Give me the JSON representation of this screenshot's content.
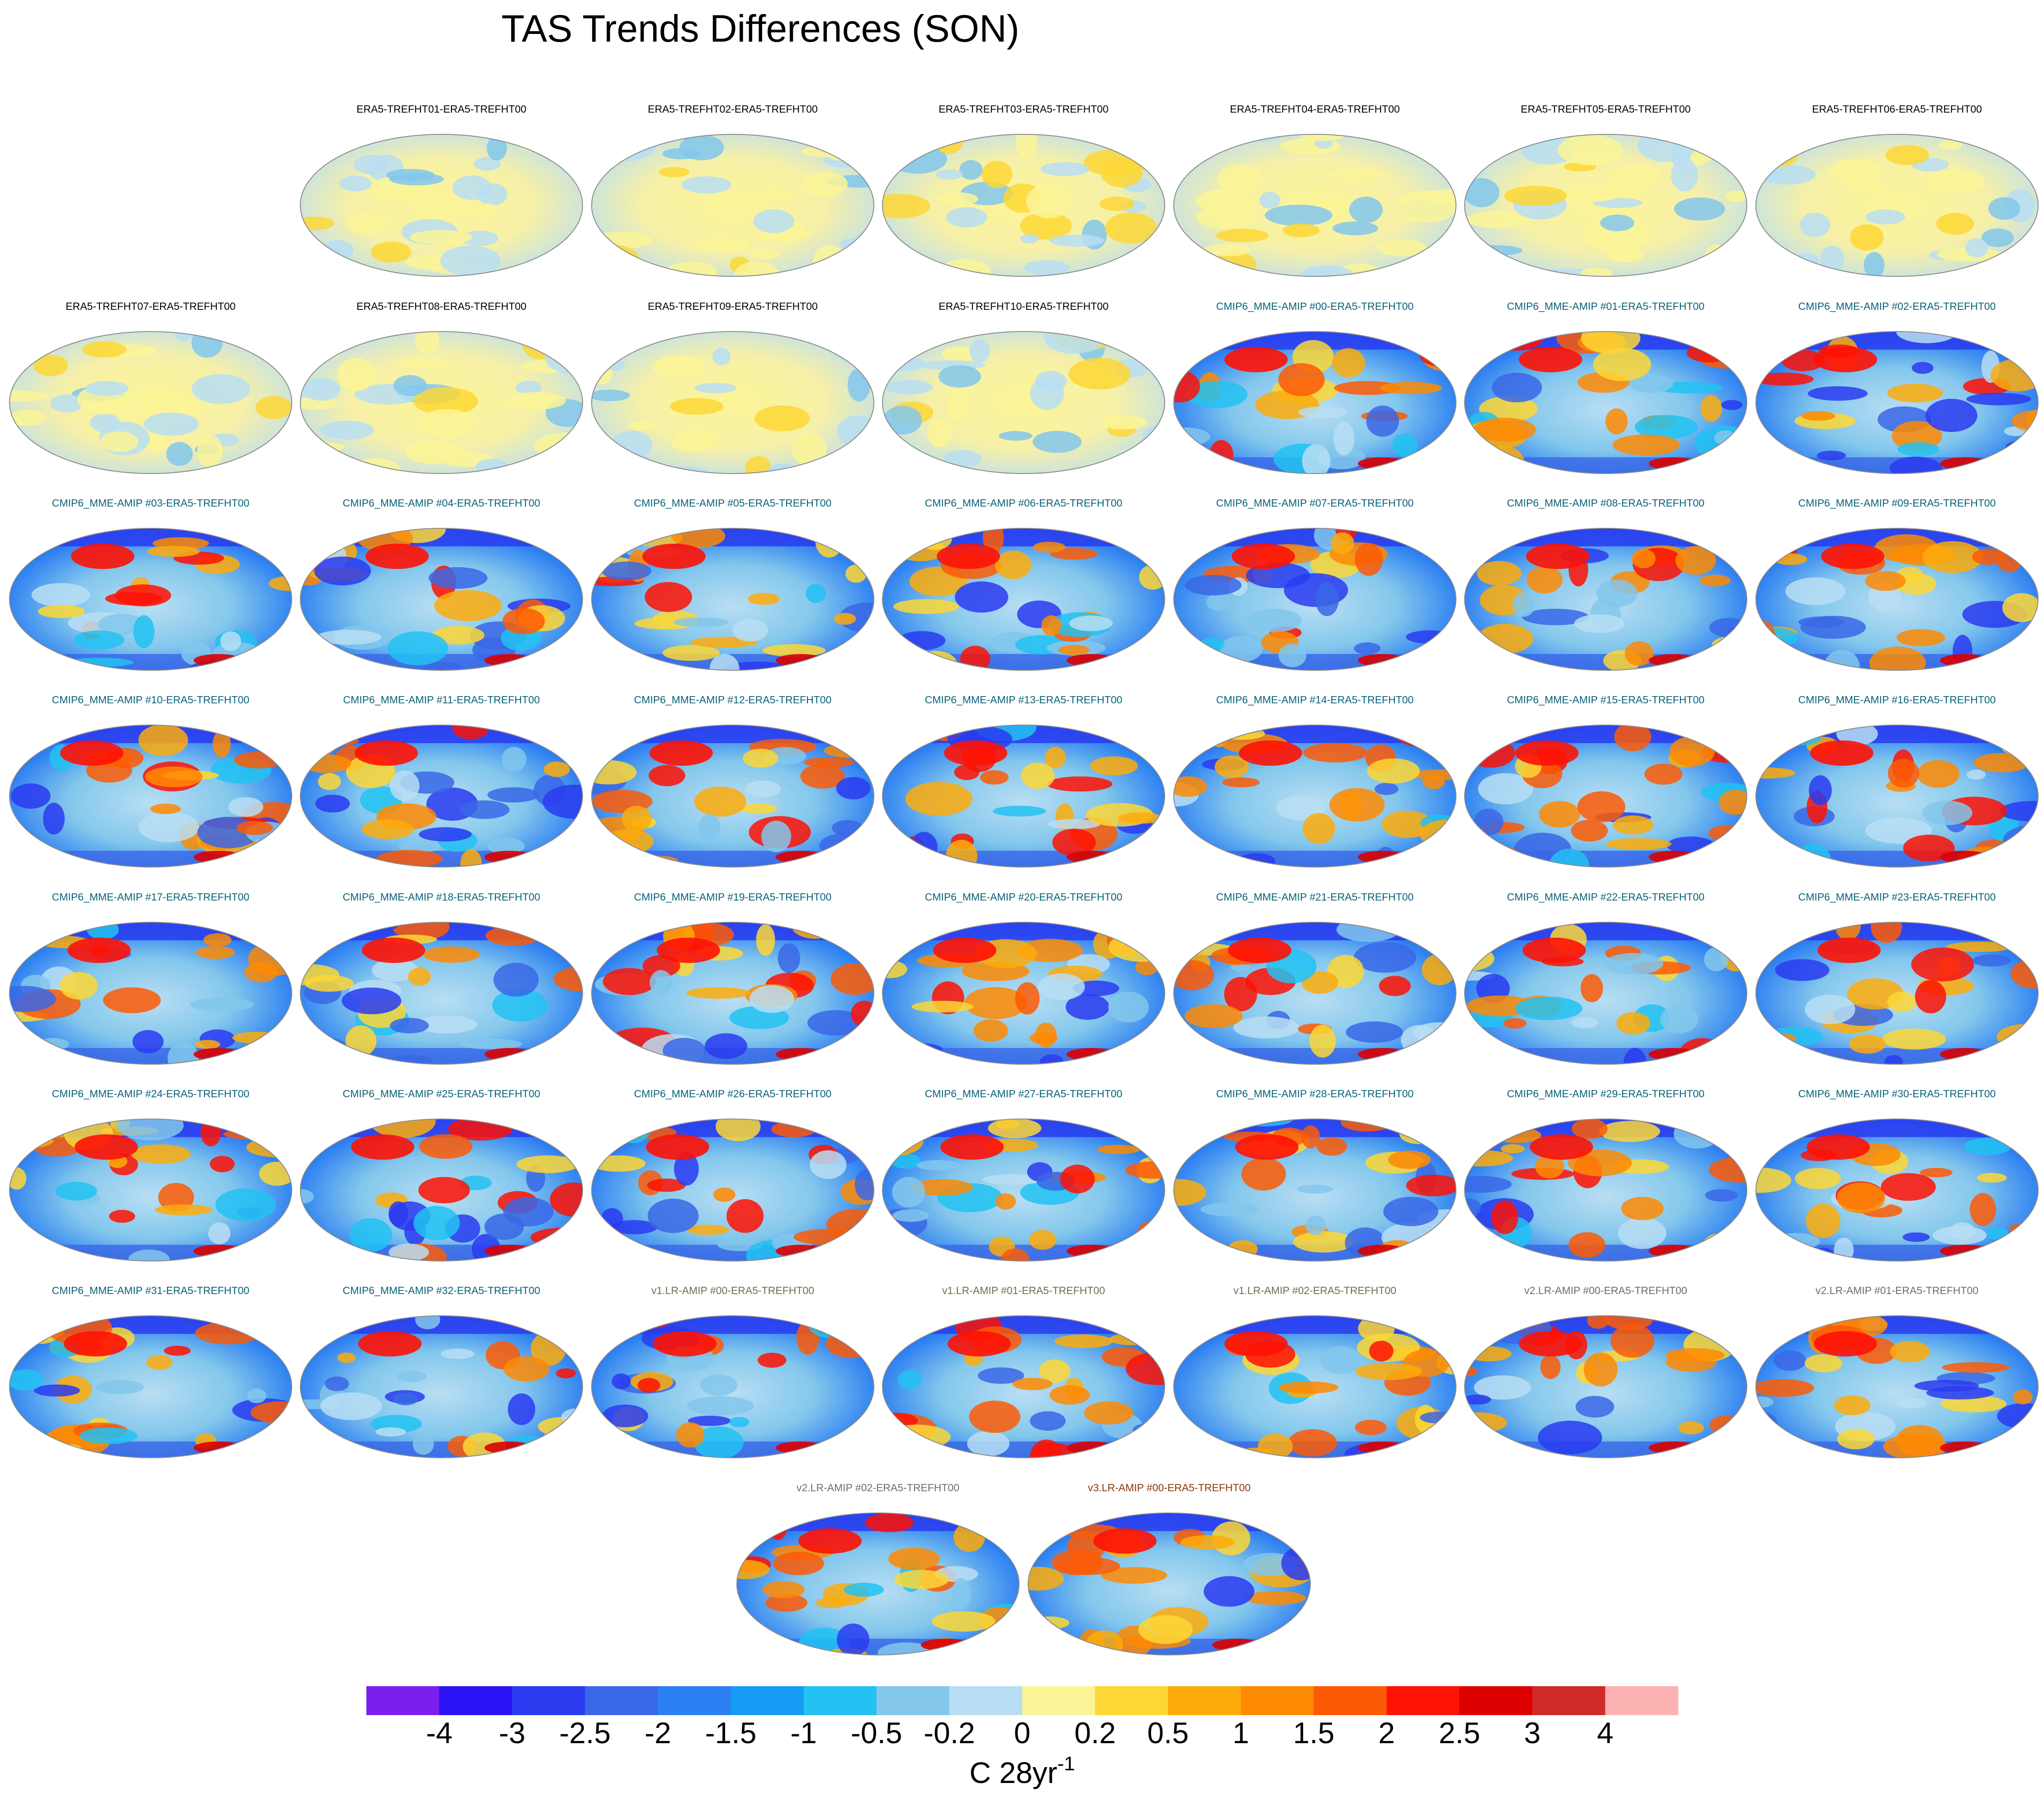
{
  "title": "TAS Trends Differences (SON)",
  "chart_data": {
    "type": "heatmap",
    "title": "TAS Trends Differences (SON)",
    "description_kind": "panel grid of global map trend differences",
    "panels": [
      {
        "label": "ERA5-TREFHT01-ERA5-TREFHT00",
        "group": "era5"
      },
      {
        "label": "ERA5-TREFHT02-ERA5-TREFHT00",
        "group": "era5"
      },
      {
        "label": "ERA5-TREFHT03-ERA5-TREFHT00",
        "group": "era5"
      },
      {
        "label": "ERA5-TREFHT04-ERA5-TREFHT00",
        "group": "era5"
      },
      {
        "label": "ERA5-TREFHT05-ERA5-TREFHT00",
        "group": "era5"
      },
      {
        "label": "ERA5-TREFHT06-ERA5-TREFHT00",
        "group": "era5"
      },
      {
        "label": "ERA5-TREFHT07-ERA5-TREFHT00",
        "group": "era5"
      },
      {
        "label": "ERA5-TREFHT08-ERA5-TREFHT00",
        "group": "era5"
      },
      {
        "label": "ERA5-TREFHT09-ERA5-TREFHT00",
        "group": "era5"
      },
      {
        "label": "ERA5-TREFHT10-ERA5-TREFHT00",
        "group": "era5"
      },
      {
        "label": "CMIP6_MME-AMIP  #00-ERA5-TREFHT00",
        "group": "cmip6"
      },
      {
        "label": "CMIP6_MME-AMIP  #01-ERA5-TREFHT00",
        "group": "cmip6"
      },
      {
        "label": "CMIP6_MME-AMIP  #02-ERA5-TREFHT00",
        "group": "cmip6"
      },
      {
        "label": "CMIP6_MME-AMIP  #03-ERA5-TREFHT00",
        "group": "cmip6"
      },
      {
        "label": "CMIP6_MME-AMIP  #04-ERA5-TREFHT00",
        "group": "cmip6"
      },
      {
        "label": "CMIP6_MME-AMIP  #05-ERA5-TREFHT00",
        "group": "cmip6"
      },
      {
        "label": "CMIP6_MME-AMIP  #06-ERA5-TREFHT00",
        "group": "cmip6"
      },
      {
        "label": "CMIP6_MME-AMIP  #07-ERA5-TREFHT00",
        "group": "cmip6"
      },
      {
        "label": "CMIP6_MME-AMIP  #08-ERA5-TREFHT00",
        "group": "cmip6"
      },
      {
        "label": "CMIP6_MME-AMIP  #09-ERA5-TREFHT00",
        "group": "cmip6"
      },
      {
        "label": "CMIP6_MME-AMIP  #10-ERA5-TREFHT00",
        "group": "cmip6"
      },
      {
        "label": "CMIP6_MME-AMIP  #11-ERA5-TREFHT00",
        "group": "cmip6"
      },
      {
        "label": "CMIP6_MME-AMIP  #12-ERA5-TREFHT00",
        "group": "cmip6"
      },
      {
        "label": "CMIP6_MME-AMIP  #13-ERA5-TREFHT00",
        "group": "cmip6"
      },
      {
        "label": "CMIP6_MME-AMIP  #14-ERA5-TREFHT00",
        "group": "cmip6"
      },
      {
        "label": "CMIP6_MME-AMIP  #15-ERA5-TREFHT00",
        "group": "cmip6"
      },
      {
        "label": "CMIP6_MME-AMIP  #16-ERA5-TREFHT00",
        "group": "cmip6"
      },
      {
        "label": "CMIP6_MME-AMIP  #17-ERA5-TREFHT00",
        "group": "cmip6"
      },
      {
        "label": "CMIP6_MME-AMIP  #18-ERA5-TREFHT00",
        "group": "cmip6"
      },
      {
        "label": "CMIP6_MME-AMIP  #19-ERA5-TREFHT00",
        "group": "cmip6"
      },
      {
        "label": "CMIP6_MME-AMIP  #20-ERA5-TREFHT00",
        "group": "cmip6"
      },
      {
        "label": "CMIP6_MME-AMIP  #21-ERA5-TREFHT00",
        "group": "cmip6"
      },
      {
        "label": "CMIP6_MME-AMIP  #22-ERA5-TREFHT00",
        "group": "cmip6"
      },
      {
        "label": "CMIP6_MME-AMIP  #23-ERA5-TREFHT00",
        "group": "cmip6"
      },
      {
        "label": "CMIP6_MME-AMIP  #24-ERA5-TREFHT00",
        "group": "cmip6"
      },
      {
        "label": "CMIP6_MME-AMIP  #25-ERA5-TREFHT00",
        "group": "cmip6"
      },
      {
        "label": "CMIP6_MME-AMIP  #26-ERA5-TREFHT00",
        "group": "cmip6"
      },
      {
        "label": "CMIP6_MME-AMIP  #27-ERA5-TREFHT00",
        "group": "cmip6"
      },
      {
        "label": "CMIP6_MME-AMIP  #28-ERA5-TREFHT00",
        "group": "cmip6"
      },
      {
        "label": "CMIP6_MME-AMIP  #29-ERA5-TREFHT00",
        "group": "cmip6"
      },
      {
        "label": "CMIP6_MME-AMIP  #30-ERA5-TREFHT00",
        "group": "cmip6"
      },
      {
        "label": "CMIP6_MME-AMIP  #31-ERA5-TREFHT00",
        "group": "cmip6"
      },
      {
        "label": "CMIP6_MME-AMIP  #32-ERA5-TREFHT00",
        "group": "cmip6"
      },
      {
        "label": "v1.LR-AMIP  #00-ERA5-TREFHT00",
        "group": "v1"
      },
      {
        "label": "v1.LR-AMIP  #01-ERA5-TREFHT00",
        "group": "v1"
      },
      {
        "label": "v1.LR-AMIP  #02-ERA5-TREFHT00",
        "group": "v1"
      },
      {
        "label": "v2.LR-AMIP  #00-ERA5-TREFHT00",
        "group": "v2"
      },
      {
        "label": "v2.LR-AMIP  #01-ERA5-TREFHT00",
        "group": "v2"
      },
      {
        "label": "v2.LR-AMIP  #02-ERA5-TREFHT00",
        "group": "v2"
      },
      {
        "label": "v3.LR-AMIP  #00-ERA5-TREFHT00",
        "group": "v3"
      }
    ],
    "colorbar": {
      "levels": [
        "-4",
        "-3",
        "-2.5",
        "-2",
        "-1.5",
        "-1",
        "-0.5",
        "-0.2",
        "0",
        "0.2",
        "0.5",
        "1",
        "1.5",
        "2",
        "2.5",
        "3",
        "4"
      ],
      "colors": [
        "#7b1fee",
        "#2b12f5",
        "#2a3bf0",
        "#3a67e6",
        "#2c7ff2",
        "#159cf4",
        "#22c2f2",
        "#83c7ec",
        "#b9def3",
        "#fcf597",
        "#fdd735",
        "#fdab0a",
        "#fe8a02",
        "#fd5a05",
        "#fe1204",
        "#dc0000",
        "#d22a28",
        "#fdb2b2"
      ],
      "label": "C 28yr",
      "label_exponent": "-1"
    },
    "group_colors": {
      "era5": "#000000",
      "cmip6": "#08627a",
      "v1": "#6e6e4e",
      "v2": "#6e6e6e",
      "v3": "#8b3a0a"
    }
  }
}
